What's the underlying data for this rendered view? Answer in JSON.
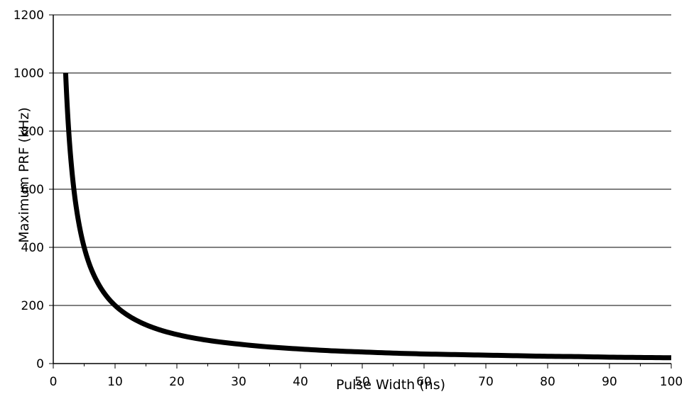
{
  "chart_data": {
    "type": "line",
    "title": "",
    "xlabel": "Pulse Width (ns)",
    "ylabel": "Maximum PRF (kHz)",
    "xlim": [
      0,
      100
    ],
    "ylim": [
      0,
      1200
    ],
    "x_ticks": [
      "0",
      "10",
      "20",
      "30",
      "40",
      "50",
      "60",
      "70",
      "80",
      "90",
      "100"
    ],
    "y_ticks": [
      "0",
      "200",
      "400",
      "600",
      "800",
      "1000",
      "1200"
    ],
    "grid": "horizontal",
    "legend": "none",
    "series": [
      {
        "color": "#000000",
        "points": [
          [
            2,
            1000
          ],
          [
            2.5,
            800
          ],
          [
            3,
            667
          ],
          [
            3.5,
            571
          ],
          [
            4,
            500
          ],
          [
            5,
            400
          ],
          [
            6,
            333
          ],
          [
            7,
            286
          ],
          [
            8,
            250
          ],
          [
            9,
            222
          ],
          [
            10,
            200
          ],
          [
            12,
            167
          ],
          [
            14,
            143
          ],
          [
            16,
            125
          ],
          [
            18,
            111
          ],
          [
            20,
            100
          ],
          [
            25,
            80
          ],
          [
            30,
            67
          ],
          [
            35,
            57
          ],
          [
            40,
            50
          ],
          [
            45,
            44
          ],
          [
            50,
            40
          ],
          [
            55,
            36
          ],
          [
            60,
            33
          ],
          [
            65,
            31
          ],
          [
            70,
            29
          ],
          [
            75,
            27
          ],
          [
            80,
            25
          ],
          [
            85,
            24
          ],
          [
            90,
            22
          ],
          [
            95,
            21
          ],
          [
            100,
            20
          ]
        ]
      }
    ]
  }
}
